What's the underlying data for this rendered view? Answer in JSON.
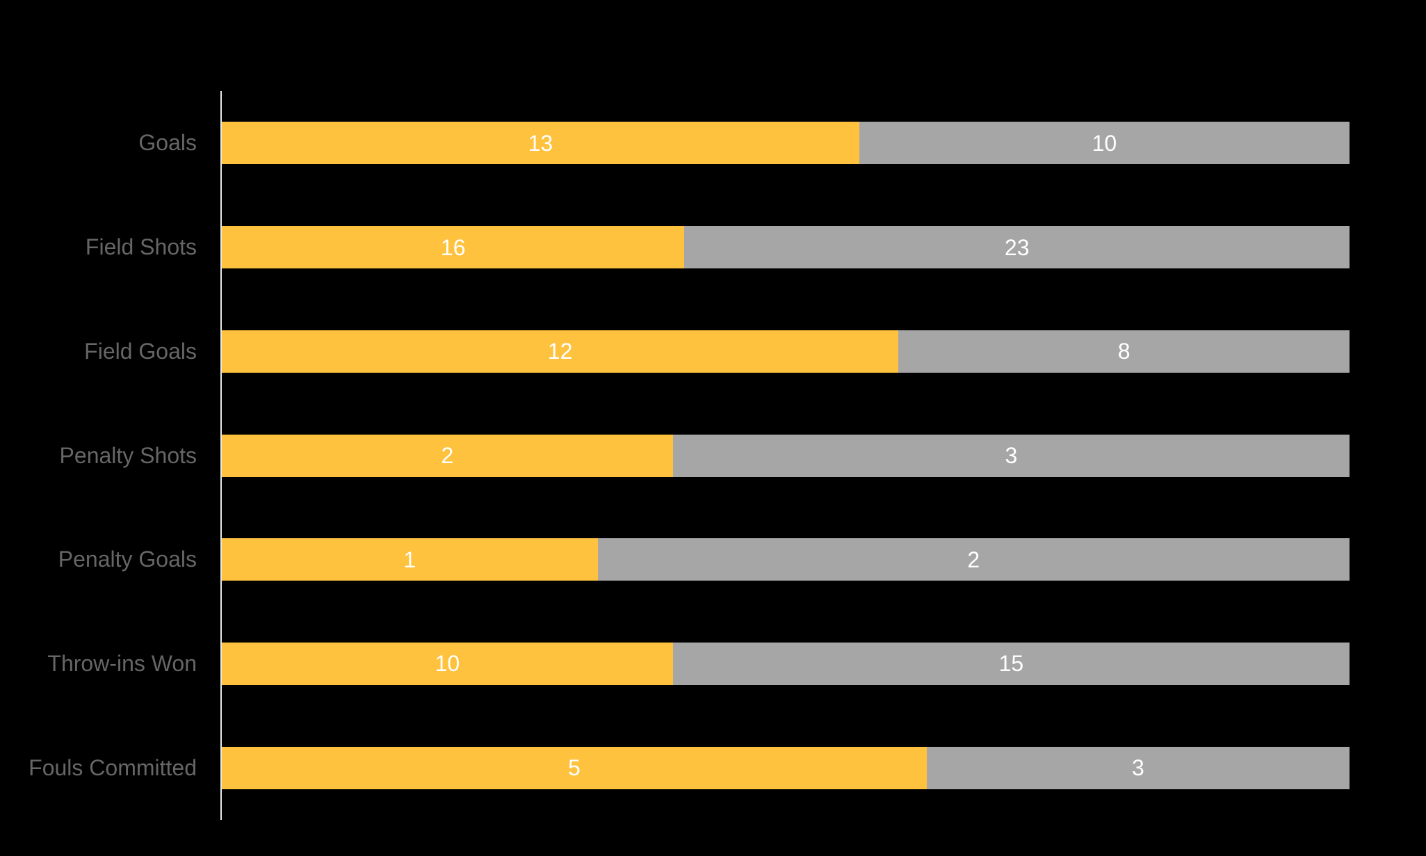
{
  "chart_data": {
    "type": "bar",
    "orientation": "horizontal",
    "stacked": true,
    "normalized_to_full_width": true,
    "grid": false,
    "legend_position": "none",
    "categories": [
      "Goals",
      "Field Shots",
      "Field Goals",
      "Penalty Shots",
      "Penalty Goals",
      "Throw-ins Won",
      "Fouls Committed"
    ],
    "series": [
      {
        "name": "yellow-series",
        "color": "#FEC23E",
        "values": [
          13,
          16,
          12,
          2,
          1,
          10,
          5
        ]
      },
      {
        "name": "gray-series",
        "color": "#A6A6A6",
        "values": [
          10,
          23,
          8,
          3,
          2,
          15,
          3
        ]
      }
    ],
    "colors": {
      "background": "#000000",
      "axis_line": "#E9E9E9",
      "category_label": "#666666",
      "value_label": "#FFFFFF"
    }
  }
}
